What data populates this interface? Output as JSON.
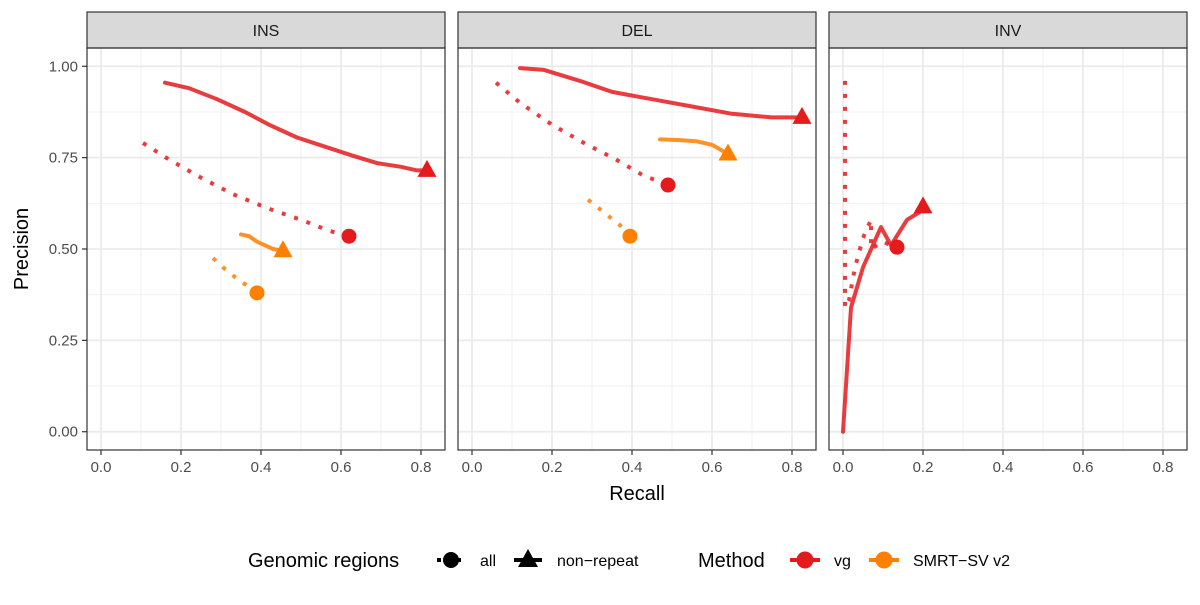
{
  "chart_data": {
    "type": "line",
    "xlabel": "Recall",
    "ylabel": "Precision",
    "xlim": [
      -0.035,
      0.86
    ],
    "ylim": [
      -0.05,
      1.05
    ],
    "xticks": [
      "0.0",
      "0.2",
      "0.4",
      "0.6",
      "0.8"
    ],
    "xtick_values": [
      0,
      0.2,
      0.4,
      0.6,
      0.8
    ],
    "yticks": [
      "0.00",
      "0.25",
      "0.50",
      "0.75",
      "1.00"
    ],
    "ytick_values": [
      0,
      0.25,
      0.5,
      0.75,
      1.0
    ],
    "grid": true,
    "legend": {
      "position": "bottom",
      "regions_title": "Genomic regions",
      "regions": [
        {
          "key": "all",
          "label": "all",
          "linetype": "dotted",
          "shape": "circle"
        },
        {
          "key": "nonrepeat",
          "label": "non−repeat",
          "linetype": "solid",
          "shape": "triangle"
        }
      ],
      "method_title": "Method",
      "methods": [
        {
          "key": "vg",
          "label": "vg",
          "color": "#e41a1c"
        },
        {
          "key": "smrt",
          "label": "SMRT−SV v2",
          "color": "#ff7f00"
        }
      ]
    },
    "panels": [
      {
        "strip": "INS",
        "series": [
          {
            "method": "vg",
            "region": "nonrepeat",
            "x": [
              0.16,
              0.22,
              0.29,
              0.36,
              0.42,
              0.49,
              0.56,
              0.63,
              0.69,
              0.75,
              0.79,
              0.81
            ],
            "y": [
              0.955,
              0.94,
              0.91,
              0.875,
              0.84,
              0.805,
              0.78,
              0.755,
              0.735,
              0.725,
              0.715,
              0.715
            ],
            "end": {
              "x": 0.815,
              "y": 0.715
            }
          },
          {
            "method": "vg",
            "region": "all",
            "x": [
              0.105,
              0.17,
              0.25,
              0.33,
              0.42,
              0.5,
              0.57,
              0.62
            ],
            "y": [
              0.79,
              0.745,
              0.695,
              0.65,
              0.61,
              0.58,
              0.55,
              0.535
            ],
            "end": {
              "x": 0.62,
              "y": 0.535
            }
          },
          {
            "method": "smrt",
            "region": "nonrepeat",
            "x": [
              0.35,
              0.37,
              0.39,
              0.41,
              0.43,
              0.455
            ],
            "y": [
              0.54,
              0.535,
              0.52,
              0.51,
              0.5,
              0.495
            ],
            "end": {
              "x": 0.455,
              "y": 0.495
            }
          },
          {
            "method": "smrt",
            "region": "all",
            "x": [
              0.28,
              0.31,
              0.35,
              0.39
            ],
            "y": [
              0.475,
              0.445,
              0.41,
              0.385
            ],
            "end": {
              "x": 0.39,
              "y": 0.38
            }
          }
        ]
      },
      {
        "strip": "DEL",
        "series": [
          {
            "method": "vg",
            "region": "nonrepeat",
            "x": [
              0.12,
              0.18,
              0.27,
              0.35,
              0.45,
              0.55,
              0.65,
              0.75,
              0.82
            ],
            "y": [
              0.995,
              0.99,
              0.96,
              0.93,
              0.91,
              0.89,
              0.87,
              0.86,
              0.86
            ],
            "end": {
              "x": 0.825,
              "y": 0.86
            }
          },
          {
            "method": "vg",
            "region": "all",
            "x": [
              0.06,
              0.12,
              0.2,
              0.28,
              0.36,
              0.43,
              0.48
            ],
            "y": [
              0.955,
              0.9,
              0.84,
              0.79,
              0.745,
              0.7,
              0.68
            ],
            "end": {
              "x": 0.49,
              "y": 0.675
            }
          },
          {
            "method": "smrt",
            "region": "nonrepeat",
            "x": [
              0.47,
              0.52,
              0.56,
              0.6,
              0.64
            ],
            "y": [
              0.8,
              0.798,
              0.795,
              0.785,
              0.76
            ],
            "end": {
              "x": 0.64,
              "y": 0.76
            }
          },
          {
            "method": "smrt",
            "region": "all",
            "x": [
              0.29,
              0.33,
              0.37,
              0.395
            ],
            "y": [
              0.635,
              0.6,
              0.565,
              0.535
            ],
            "end": {
              "x": 0.395,
              "y": 0.535
            }
          }
        ]
      },
      {
        "strip": "INV",
        "series": [
          {
            "method": "vg",
            "region": "nonrepeat",
            "x": [
              0.0,
              0.02,
              0.05,
              0.095,
              0.12,
              0.16,
              0.19,
              0.2
            ],
            "y": [
              0.0,
              0.34,
              0.45,
              0.56,
              0.51,
              0.58,
              0.6,
              0.615
            ],
            "end": {
              "x": 0.2,
              "y": 0.615
            }
          },
          {
            "method": "vg",
            "region": "all",
            "x": [
              0.005,
              0.005,
              0.005,
              0.005,
              0.005,
              0.005,
              0.015,
              0.03,
              0.05,
              0.07,
              0.07,
              0.1,
              0.13
            ],
            "y": [
              0.96,
              0.85,
              0.7,
              0.55,
              0.45,
              0.34,
              0.36,
              0.45,
              0.53,
              0.58,
              0.5,
              0.52,
              0.505
            ],
            "end": {
              "x": 0.135,
              "y": 0.505
            }
          }
        ]
      }
    ]
  }
}
